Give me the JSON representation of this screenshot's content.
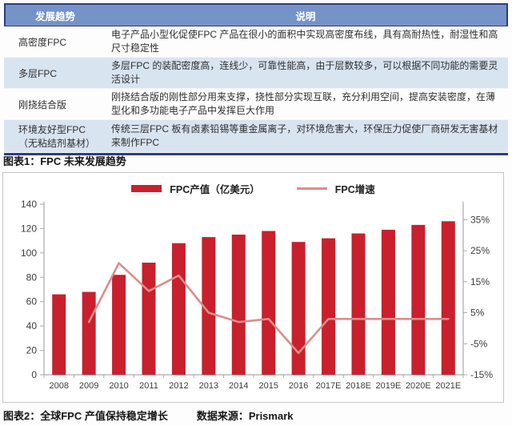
{
  "page": {
    "caption1": "图表1：FPC 未来发展趋势",
    "caption2": "图表2：全球FPC 产值保持稳定增长",
    "source": "数据来源：Prismark"
  },
  "table": {
    "headers": [
      "发展趋势",
      "说明"
    ],
    "rows": [
      {
        "trend": "高密度FPC",
        "trend_sub": "",
        "description": "电子产品小型化促使FPC 产品在很小的面积中实现高密度布线，具有高耐热性，耐湿性和高尺寸稳定性"
      },
      {
        "trend": "多层FPC",
        "trend_sub": "",
        "description": "多层FPC 的装配密度高，连线少，可靠性能高，由于层数较多，可以根据不同功能的需要灵活设计"
      },
      {
        "trend": "刚挠结合版",
        "trend_sub": "",
        "description": "刚挠结合版的刚性部分用来支撑，挠性部分实现互联，充分利用空间，提高安装密度，在薄型化和多功能电子产品中发挥巨大作用"
      },
      {
        "trend": "环境友好型FPC",
        "trend_sub": "（无粘结剂基材）",
        "description": "传统三层FPC 板有卤素铅锡等重金属离子，对环境危害大，环保压力促使厂商研发无害基材来制作FPC"
      }
    ]
  },
  "chart_data": {
    "type": "bar",
    "subtype": "bar+line dual axis",
    "categories": [
      "2008",
      "2009",
      "2010",
      "2011",
      "2012",
      "2013",
      "2014",
      "2015",
      "2016",
      "2017E",
      "2018E",
      "2019E",
      "2020E",
      "2021E"
    ],
    "series": [
      {
        "name": "FPC产值（亿美元）",
        "type": "bar",
        "axis": "left",
        "color": "#c8202d",
        "values": [
          66,
          68,
          82,
          92,
          108,
          113,
          115,
          118,
          109,
          112,
          116,
          119,
          123,
          126
        ]
      },
      {
        "name": "FPC增速",
        "type": "line",
        "axis": "right",
        "color": "#db8d8b",
        "values": [
          null,
          2,
          21,
          12,
          17,
          5,
          2,
          3,
          -8,
          3,
          3,
          3,
          3,
          3
        ]
      }
    ],
    "left_axis": {
      "min": 0,
      "max": 140,
      "ticks": [
        0,
        20,
        40,
        60,
        80,
        100,
        120,
        140
      ]
    },
    "right_axis": {
      "min": -15,
      "max": 40,
      "ticks": [
        -15,
        -5,
        5,
        15,
        25,
        35
      ],
      "unit": "%"
    },
    "title": "",
    "xlabel": "",
    "ylabel": "",
    "legend_position": "top",
    "grid": false
  },
  "colors": {
    "bar_red": "#c8202d",
    "line_pink": "#db8d8b",
    "header_blue": "#7593c7",
    "row_alt_blue": "#d9e4f1",
    "navy_border": "#2e3c80",
    "axis_gray": "#ababab"
  }
}
